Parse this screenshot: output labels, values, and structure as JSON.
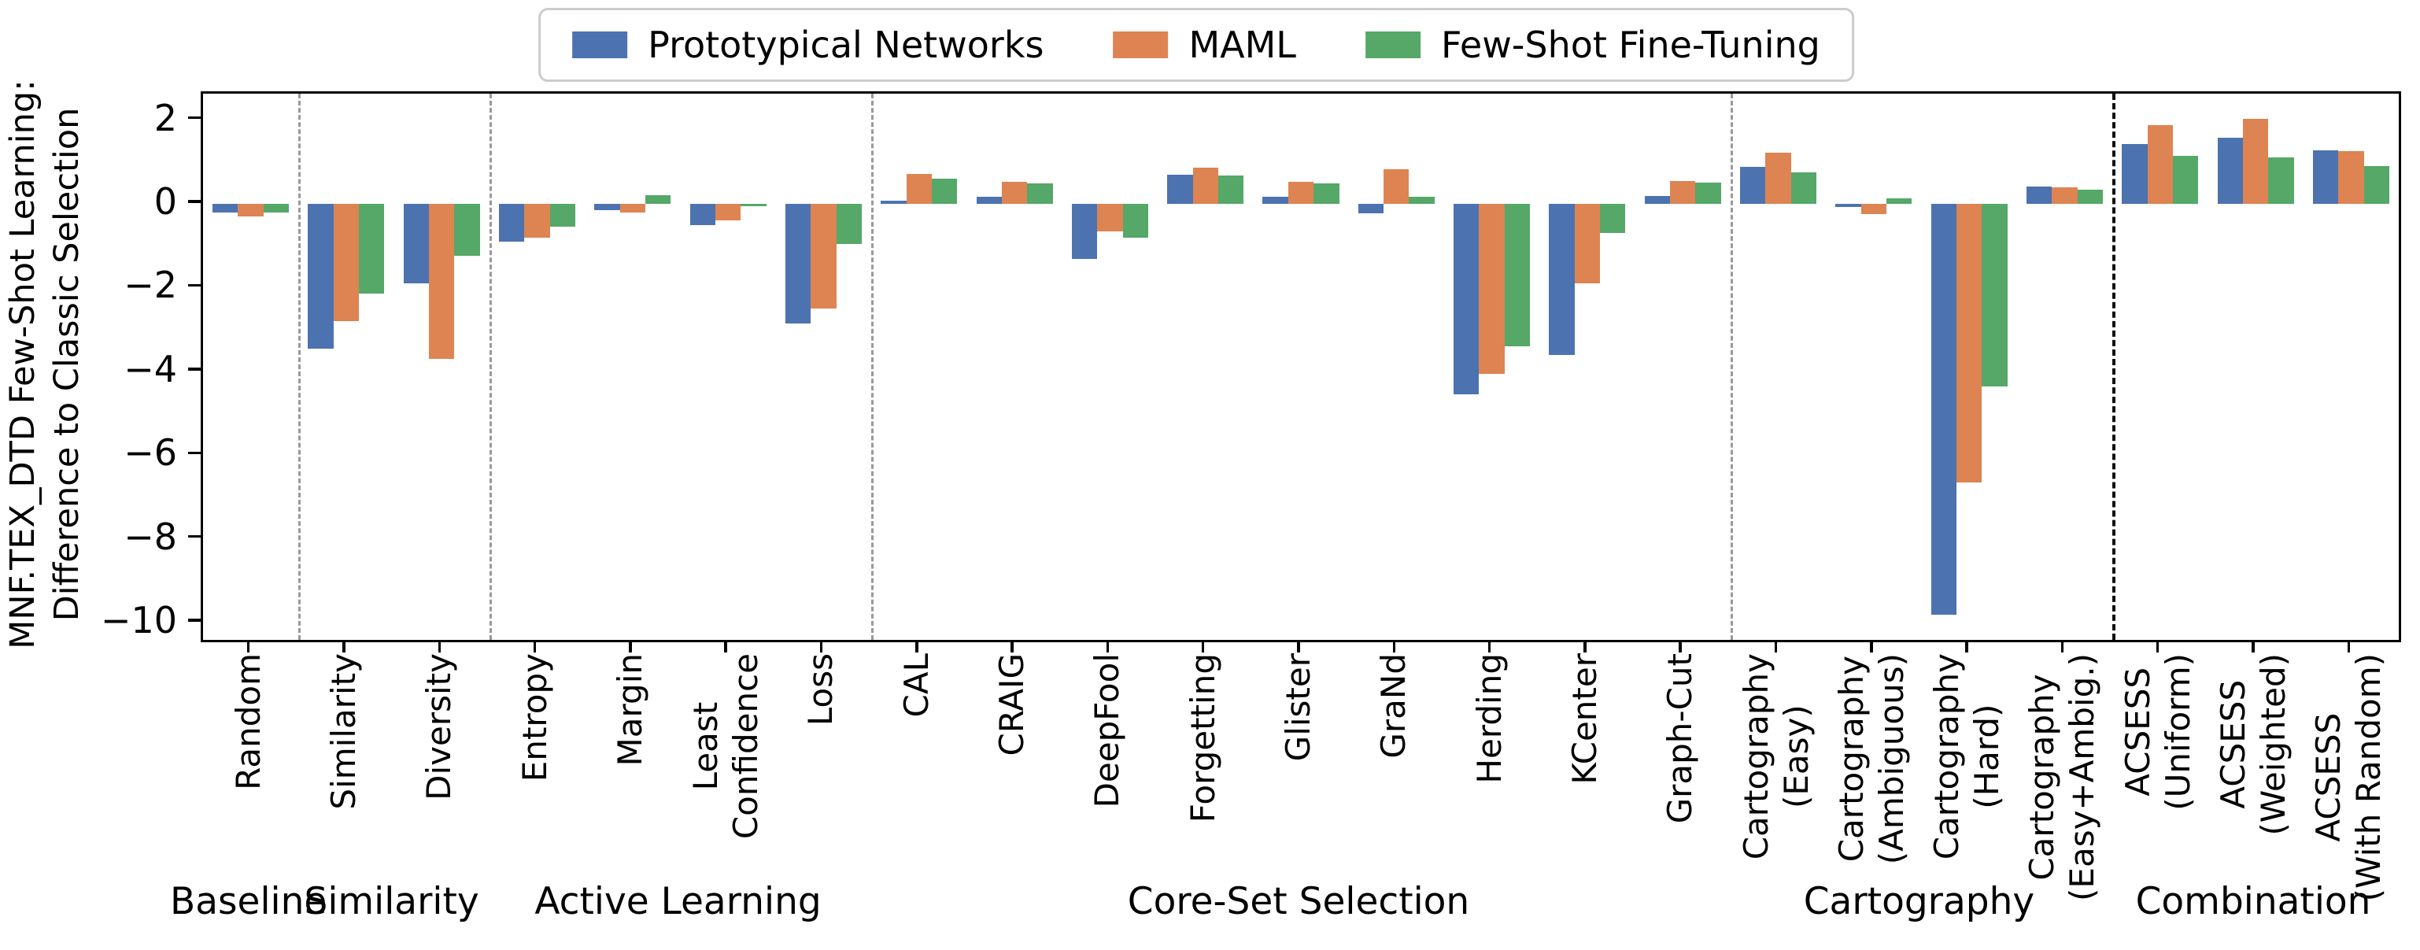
{
  "axis": {
    "y_label_line1": "MNF.TEX_DTD Few-Shot Learning:",
    "y_label_line2": "Difference to Classic Selection",
    "y_ticks": [
      2,
      0,
      -2,
      -4,
      -6,
      -8,
      -10
    ],
    "y_max": 2.63,
    "y_min": -10.41
  },
  "legend": {
    "entries": [
      {
        "label": "Prototypical Networks",
        "color": "#4C72B0",
        "icon": "blue-swatch"
      },
      {
        "label": "MAML",
        "color": "#DD8452",
        "icon": "orange-swatch"
      },
      {
        "label": "Few-Shot Fine-Tuning",
        "color": "#55A868",
        "icon": "green-swatch"
      }
    ]
  },
  "chart_data": {
    "type": "bar",
    "title": "",
    "xlabel": "",
    "ylabel": "MNF.TEX_DTD Few-Shot Learning:\nDifference to Classic Selection",
    "ylim": [
      -10.41,
      2.63
    ],
    "grid": false,
    "legend_position": "upper center, above axes",
    "categories": [
      "Random",
      "Similarity",
      "Diversity",
      "Entropy",
      "Margin",
      "Least\nConfidence",
      "Loss",
      "CAL",
      "CRAIG",
      "DeepFool",
      "Forgetting",
      "Glister",
      "GraNd",
      "Herding",
      "KCenter",
      "Graph-Cut",
      "Cartography\n(Easy)",
      "Cartography\n(Ambiguous)",
      "Cartography\n(Hard)",
      "Cartography\n(Easy+Ambig.)",
      "ACSESS\n(Uniform)",
      "ACSESS\n(Weighted)",
      "ACSESS\n(With Random)"
    ],
    "series": [
      {
        "name": "Prototypical Networks",
        "color": "#4C72B0",
        "values": [
          -0.2,
          -3.45,
          -1.9,
          -0.9,
          -0.15,
          -0.5,
          -2.85,
          0.08,
          0.17,
          -1.32,
          0.7,
          0.17,
          -0.22,
          -4.55,
          -3.6,
          0.19,
          0.88,
          -0.08,
          -9.8,
          0.42,
          1.43,
          1.57,
          1.28
        ]
      },
      {
        "name": "MAML",
        "color": "#DD8452",
        "values": [
          -0.3,
          -2.8,
          -3.7,
          -0.8,
          -0.2,
          -0.4,
          -2.5,
          0.72,
          0.52,
          -0.65,
          0.87,
          0.52,
          0.83,
          -4.05,
          -1.9,
          0.55,
          1.22,
          -0.25,
          -6.65,
          0.4,
          1.87,
          2.02,
          1.26
        ]
      },
      {
        "name": "Few-Shot Fine-Tuning",
        "color": "#55A868",
        "values": [
          -0.2,
          -2.15,
          -1.25,
          -0.55,
          0.2,
          -0.05,
          -0.95,
          0.6,
          0.48,
          -0.8,
          0.67,
          0.48,
          0.17,
          -3.4,
          -0.7,
          0.5,
          0.75,
          0.14,
          -4.36,
          0.33,
          1.14,
          1.1,
          0.91
        ]
      }
    ],
    "groups": [
      {
        "label": "Baseline",
        "from": 0,
        "to": 0
      },
      {
        "label": "Similarity",
        "from": 1,
        "to": 2
      },
      {
        "label": "Active Learning",
        "from": 3,
        "to": 6
      },
      {
        "label": "Core-Set Selection",
        "from": 7,
        "to": 15
      },
      {
        "label": "Cartography",
        "from": 16,
        "to": 19
      },
      {
        "label": "Combination",
        "from": 20,
        "to": 22
      }
    ],
    "dividers": [
      {
        "after_index": 0,
        "style": "gray"
      },
      {
        "after_index": 2,
        "style": "gray"
      },
      {
        "after_index": 6,
        "style": "gray"
      },
      {
        "after_index": 15,
        "style": "gray"
      },
      {
        "after_index": 19,
        "style": "black"
      }
    ]
  }
}
